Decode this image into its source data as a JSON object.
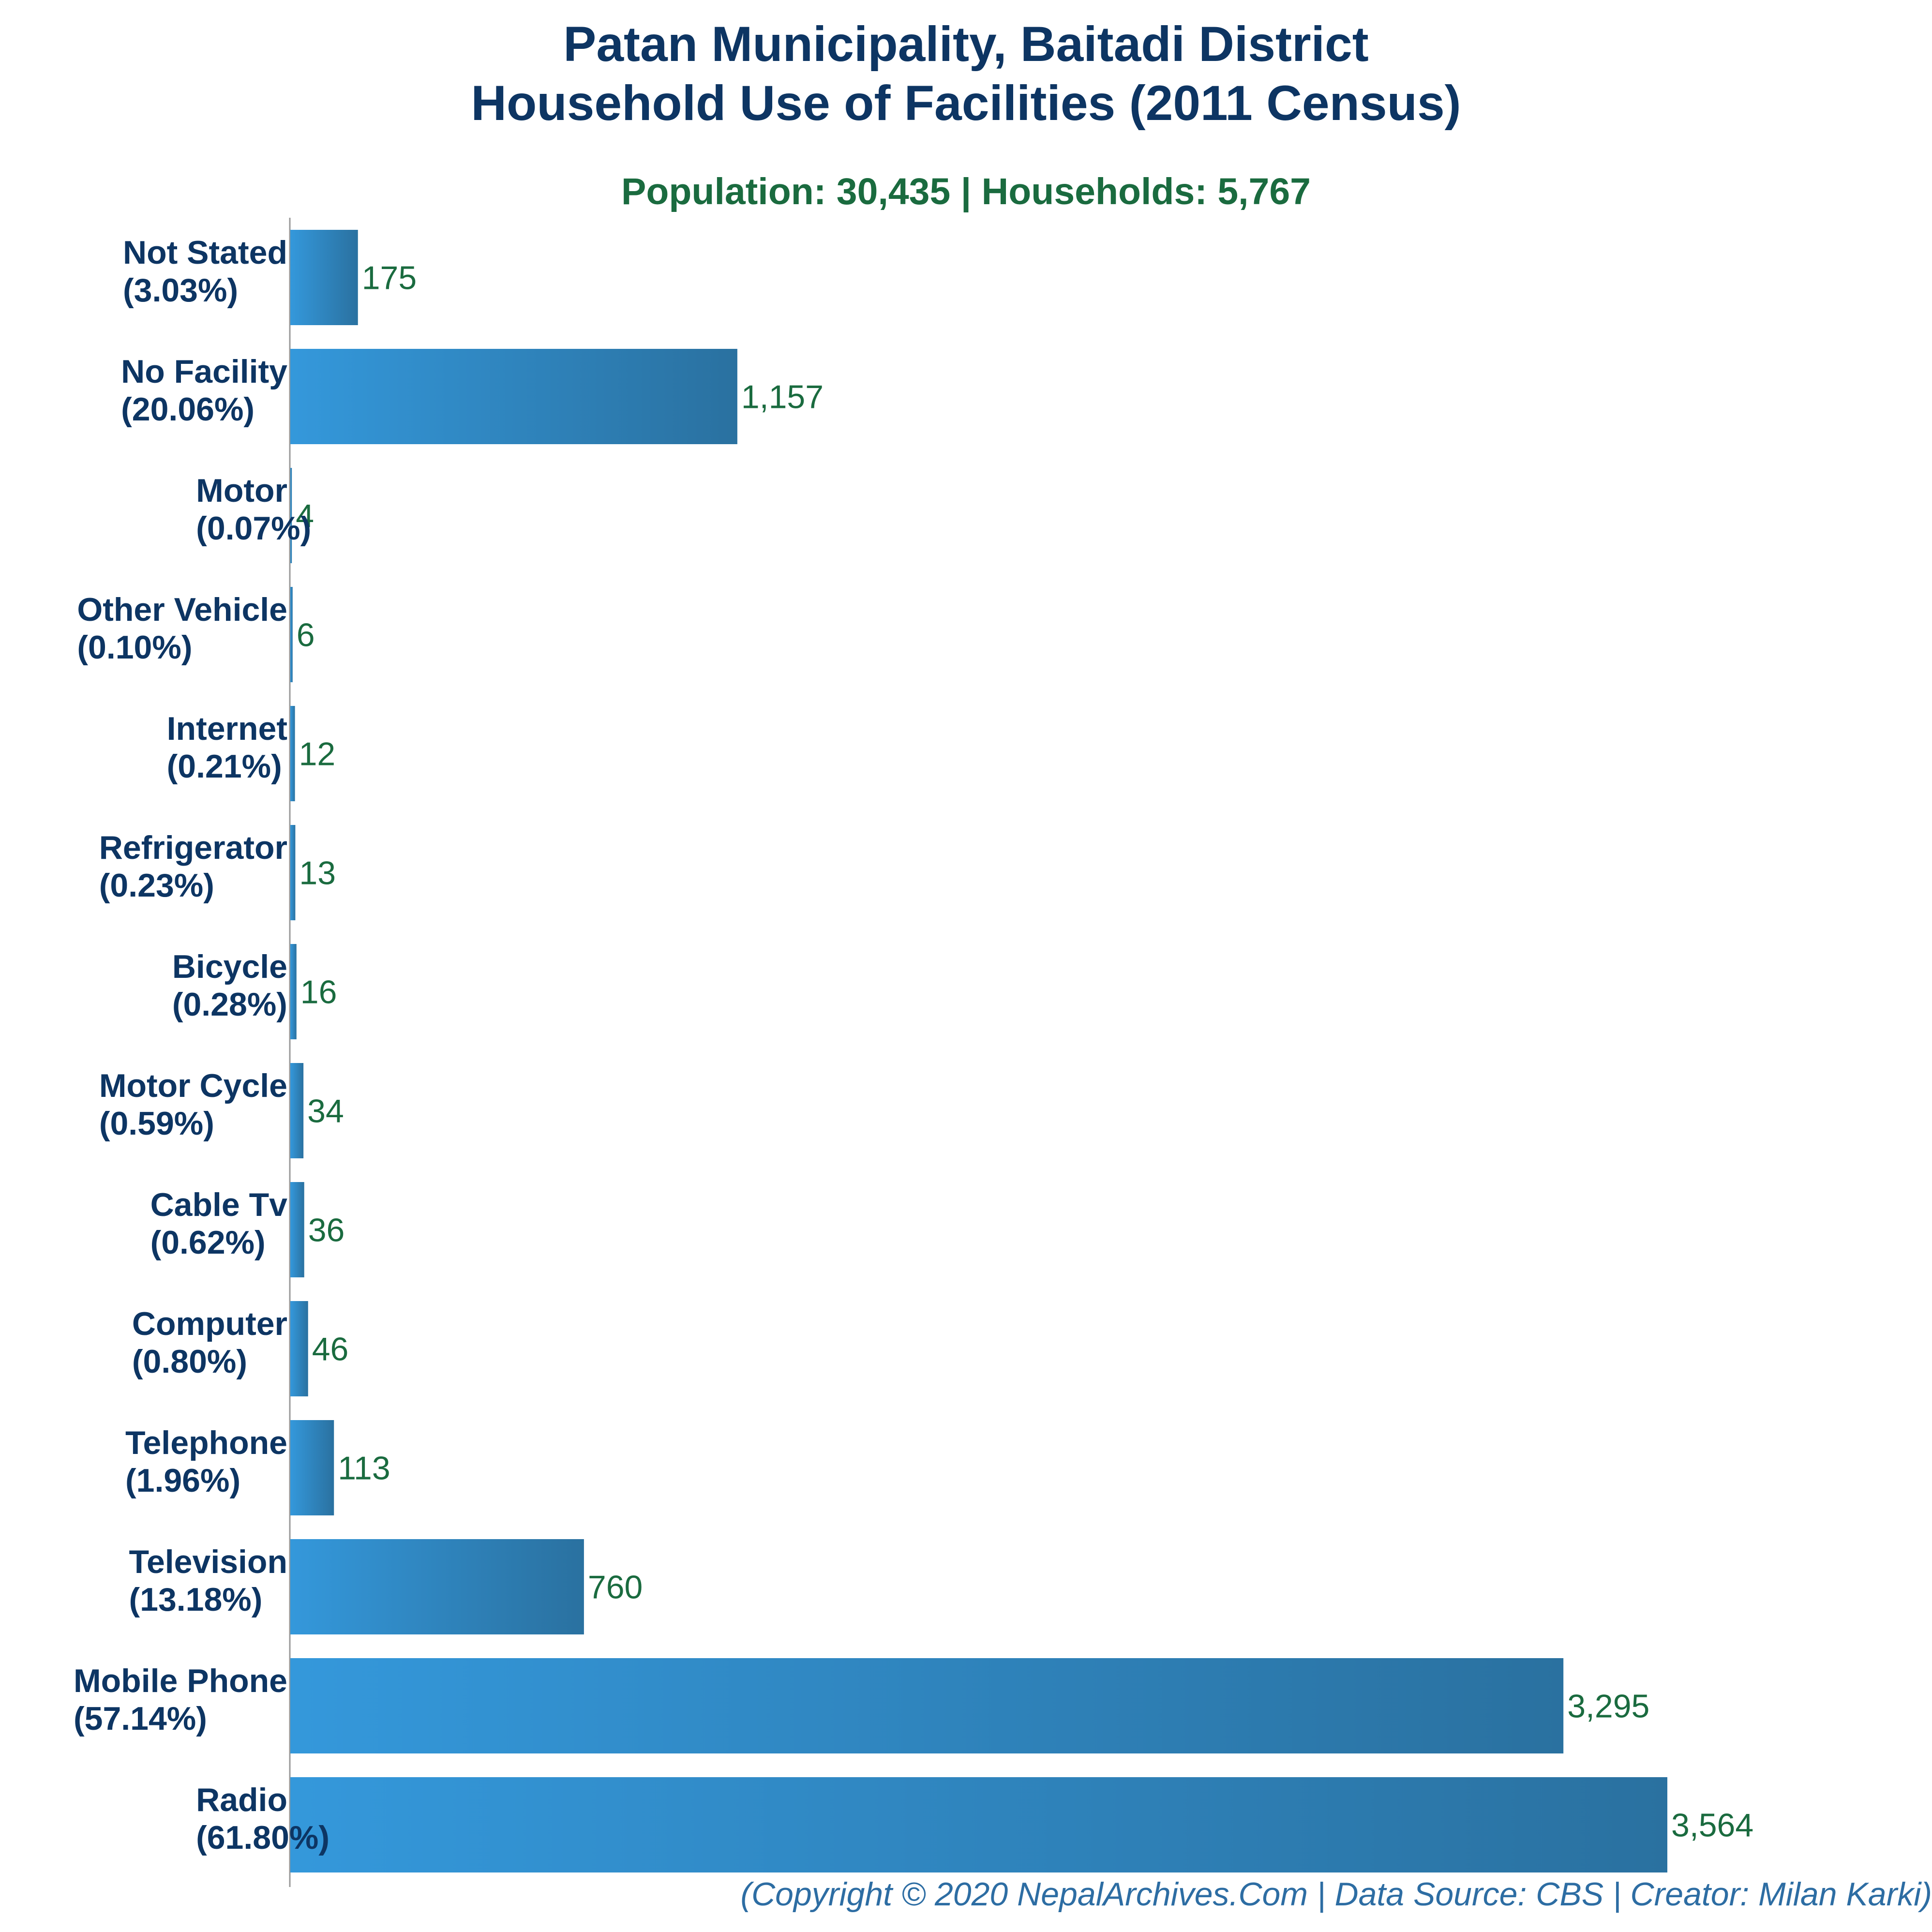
{
  "header": {
    "title_line1": "Patan Municipality, Baitadi District",
    "title_line2": "Household Use of Facilities (2011 Census)",
    "subtitle": "Population: 30,435 | Households: 5,767"
  },
  "footer": {
    "text": "(Copyright © 2020 NepalArchives.Com | Data Source: CBS | Creator: Milan Karki)"
  },
  "colors": {
    "bar_start": "#3498db",
    "bar_end": "#2a71a0",
    "title": "#0d3563",
    "value_label": "#1a6b3f"
  },
  "chart_data": {
    "type": "bar",
    "orientation": "horizontal",
    "categories": [
      "Not Stated",
      "No Facility",
      "Motor",
      "Other Vehicle",
      "Internet",
      "Refrigerator",
      "Bicycle",
      "Motor Cycle",
      "Cable Tv",
      "Computer",
      "Telephone",
      "Television",
      "Mobile Phone",
      "Radio"
    ],
    "percentages": [
      "(3.03%)",
      "(20.06%)",
      "(0.07%)",
      "(0.10%)",
      "(0.21%)",
      "(0.23%)",
      "(0.28%)",
      "(0.59%)",
      "(0.62%)",
      "(0.80%)",
      "(1.96%)",
      "(13.18%)",
      "(57.14%)",
      "(61.80%)"
    ],
    "values": [
      175,
      1157,
      4,
      6,
      12,
      13,
      16,
      34,
      36,
      46,
      113,
      760,
      3295,
      3564
    ],
    "value_labels": [
      "175",
      "1,157",
      "4",
      "6",
      "12",
      "13",
      "16",
      "34",
      "36",
      "46",
      "113",
      "760",
      "3,295",
      "3,564"
    ],
    "xlim": [
      0,
      3564
    ],
    "grid": false
  }
}
